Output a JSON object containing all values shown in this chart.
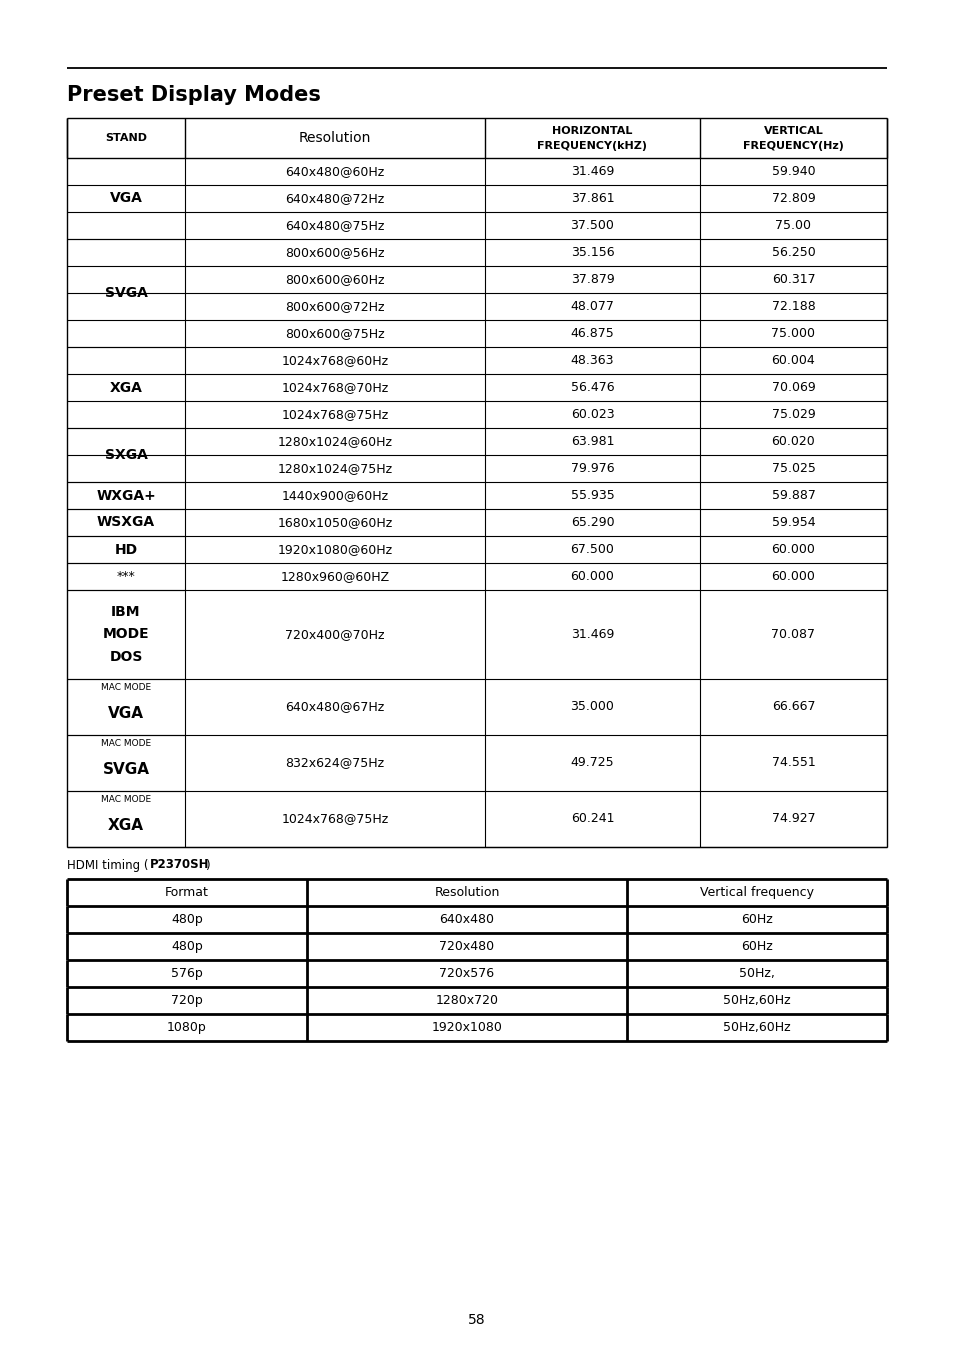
{
  "title": "Preset Display Modes",
  "page_number": "58",
  "main_table_rows": [
    {
      "stand": "",
      "resolution": "640x480@60Hz",
      "h_freq": "31.469",
      "v_freq": "59.940"
    },
    {
      "stand": "VGA",
      "resolution": "640x480@72Hz",
      "h_freq": "37.861",
      "v_freq": "72.809"
    },
    {
      "stand": "",
      "resolution": "640x480@75Hz",
      "h_freq": "37.500",
      "v_freq": "75.00"
    },
    {
      "stand": "",
      "resolution": "800x600@56Hz",
      "h_freq": "35.156",
      "v_freq": "56.250"
    },
    {
      "stand": "SVGA",
      "resolution": "800x600@60Hz",
      "h_freq": "37.879",
      "v_freq": "60.317"
    },
    {
      "stand": "",
      "resolution": "800x600@72Hz",
      "h_freq": "48.077",
      "v_freq": "72.188"
    },
    {
      "stand": "",
      "resolution": "800x600@75Hz",
      "h_freq": "46.875",
      "v_freq": "75.000"
    },
    {
      "stand": "",
      "resolution": "1024x768@60Hz",
      "h_freq": "48.363",
      "v_freq": "60.004"
    },
    {
      "stand": "XGA",
      "resolution": "1024x768@70Hz",
      "h_freq": "56.476",
      "v_freq": "70.069"
    },
    {
      "stand": "",
      "resolution": "1024x768@75Hz",
      "h_freq": "60.023",
      "v_freq": "75.029"
    },
    {
      "stand": "SXGA",
      "resolution": "1280x1024@60Hz",
      "h_freq": "63.981",
      "v_freq": "60.020"
    },
    {
      "stand": "",
      "resolution": "1280x1024@75Hz",
      "h_freq": "79.976",
      "v_freq": "75.025"
    },
    {
      "stand": "WXGA+",
      "resolution": "1440x900@60Hz",
      "h_freq": "55.935",
      "v_freq": "59.887"
    },
    {
      "stand": "WSXGA",
      "resolution": "1680x1050@60Hz",
      "h_freq": "65.290",
      "v_freq": "59.954"
    },
    {
      "stand": "HD",
      "resolution": "1920x1080@60Hz",
      "h_freq": "67.500",
      "v_freq": "60.000"
    },
    {
      "stand": "***",
      "resolution": "1280x960@60HZ",
      "h_freq": "60.000",
      "v_freq": "60.000"
    },
    {
      "stand": "IBM\nMODE\nDOS",
      "resolution": "720x400@70Hz",
      "h_freq": "31.469",
      "v_freq": "70.087"
    },
    {
      "stand": "MAC MODE\nVGA",
      "resolution": "640x480@67Hz",
      "h_freq": "35.000",
      "v_freq": "66.667"
    },
    {
      "stand": "MAC MODE\nSVGA",
      "resolution": "832x624@75Hz",
      "h_freq": "49.725",
      "v_freq": "74.551"
    },
    {
      "stand": "MAC MODE\nXGA",
      "resolution": "1024x768@75Hz",
      "h_freq": "60.241",
      "v_freq": "74.927"
    }
  ],
  "groups": [
    [
      0,
      2,
      "VGA",
      "normal"
    ],
    [
      3,
      6,
      "SVGA",
      "normal"
    ],
    [
      7,
      9,
      "XGA",
      "normal"
    ],
    [
      10,
      11,
      "SXGA",
      "normal"
    ],
    [
      12,
      12,
      "WXGA+",
      "normal"
    ],
    [
      13,
      13,
      "WSXGA",
      "normal"
    ],
    [
      14,
      14,
      "HD",
      "normal"
    ],
    [
      15,
      15,
      "***",
      "italic"
    ],
    [
      16,
      16,
      "IBM\nMODE\nDOS",
      "normal"
    ],
    [
      17,
      17,
      "MAC MODE\nVGA",
      "mac"
    ],
    [
      18,
      18,
      "MAC MODE\nSVGA",
      "mac"
    ],
    [
      19,
      19,
      "MAC MODE\nXGA",
      "mac"
    ]
  ],
  "hdmi_rows": [
    [
      "480p",
      "640x480",
      "60Hz"
    ],
    [
      "480p",
      "720x480",
      "60Hz"
    ],
    [
      "576p",
      "720x576",
      "50Hz,"
    ],
    [
      "720p",
      "1280x720",
      "50Hz,60Hz"
    ],
    [
      "1080p",
      "1920x1080",
      "50Hz,60Hz"
    ]
  ],
  "hdmi_headers": [
    "Format",
    "Resolution",
    "Vertical frequency"
  ]
}
